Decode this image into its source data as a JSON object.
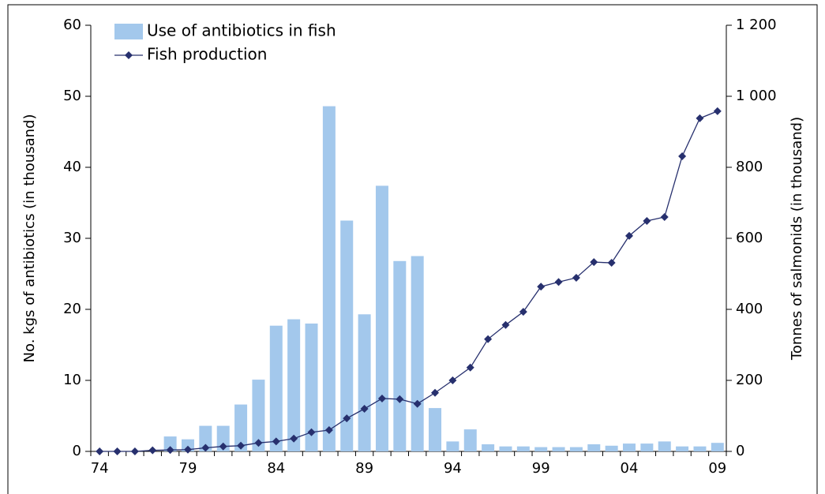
{
  "chart_data": {
    "type": "combo",
    "categories": [
      "74",
      null,
      null,
      null,
      null,
      "79",
      null,
      null,
      null,
      null,
      "84",
      null,
      null,
      null,
      null,
      "89",
      null,
      null,
      null,
      null,
      "94",
      null,
      null,
      null,
      null,
      "99",
      null,
      null,
      null,
      null,
      "04",
      null,
      null,
      null,
      null,
      "09"
    ],
    "series": [
      {
        "name": "Use of antibiotics in fish",
        "type": "bar",
        "axis": "y",
        "color": "#a3c8ec",
        "values": [
          0,
          0,
          0,
          0,
          2.1,
          1.7,
          3.6,
          3.6,
          6.6,
          10.1,
          17.7,
          18.6,
          18.0,
          48.6,
          32.5,
          19.3,
          37.4,
          26.8,
          27.5,
          6.1,
          1.4,
          3.1,
          1.0,
          0.7,
          0.7,
          0.6,
          0.6,
          0.6,
          1.0,
          0.8,
          1.1,
          1.1,
          1.4,
          0.7,
          0.7,
          1.2
        ]
      },
      {
        "name": "Fish production",
        "type": "line",
        "axis": "y2",
        "color": "#27306e",
        "values": [
          0,
          0,
          0,
          3,
          4,
          5,
          10,
          14,
          16,
          24,
          28,
          36,
          54,
          60,
          93,
          120,
          149,
          147,
          134,
          165,
          200,
          236,
          316,
          356,
          393,
          464,
          477,
          489,
          533,
          531,
          607,
          649,
          660,
          831,
          938,
          958
        ]
      }
    ],
    "ylabel": "No. kgs of antibiotics (in thousand)",
    "y2label": "Tonnes of salmonids (in thousand)",
    "ylim": [
      0,
      60
    ],
    "yticks": [
      0,
      10,
      20,
      30,
      40,
      50,
      60
    ],
    "y2lim": [
      0,
      1200
    ],
    "y2ticks": [
      0,
      200,
      400,
      600,
      800,
      {
        "value": 1000,
        "label": "1 000"
      },
      {
        "value": 1200,
        "label": "1 200"
      }
    ],
    "legend": "top-left"
  }
}
